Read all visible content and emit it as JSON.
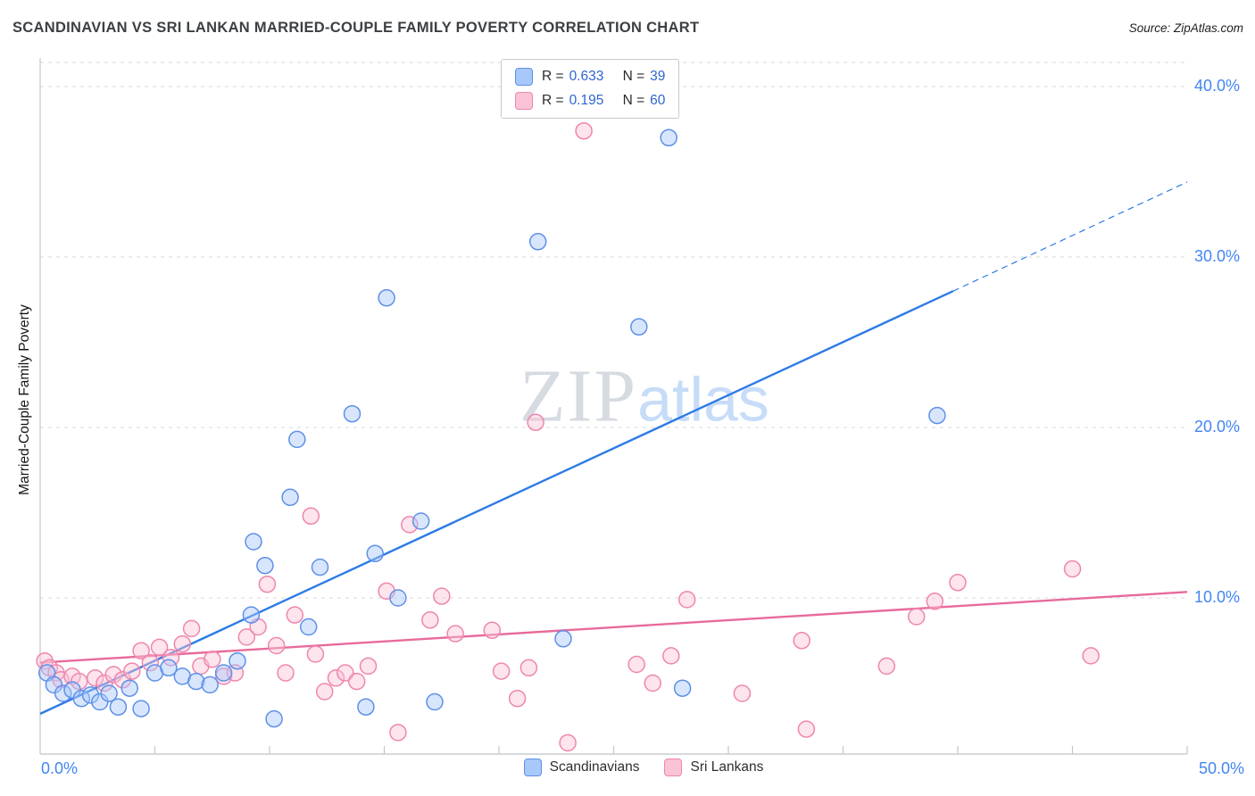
{
  "header": {
    "title": "SCANDINAVIAN VS SRI LANKAN MARRIED-COUPLE FAMILY POVERTY CORRELATION CHART",
    "source": "Source: ZipAtlas.com"
  },
  "watermark": {
    "zip": "ZIP",
    "atlas": "atlas"
  },
  "legend_box": {
    "rows": [
      {
        "series": "Scandinavians",
        "r_label": "R =",
        "r_value": "0.633",
        "n_label": "N =",
        "n_value": "39"
      },
      {
        "series": "Sri Lankans",
        "r_label": "R =",
        "r_value": "0.195",
        "n_label": "N =",
        "n_value": "60"
      }
    ]
  },
  "axes": {
    "y_title": "Married-Couple Family Poverty",
    "y_tick_labels": [
      "40.0%",
      "30.0%",
      "20.0%",
      "10.0%"
    ],
    "x_left_label": "0.0%",
    "x_right_label": "50.0%"
  },
  "bottom_legend": [
    {
      "label": "Scandinavians"
    },
    {
      "label": "Sri Lankans"
    }
  ],
  "colors": {
    "blue_fill": "#A8C8FA",
    "blue_edge": "#5E90E8",
    "blue_line": "#2D7BE5",
    "pink_fill": "#FAC3D7",
    "pink_edge": "#EF86AD",
    "pink_line": "#E76A9B",
    "axis_label_blue": "#4285F4",
    "legend_value_blue": "#2E66D0",
    "gridline": "#d9d9d9",
    "axis_line": "#c9cdd2"
  },
  "chart_data": {
    "type": "scatter",
    "title": "SCANDINAVIAN VS SRI LANKAN MARRIED-COUPLE FAMILY POVERTY CORRELATION CHART",
    "xlabel": "",
    "ylabel": "Married-Couple Family Poverty",
    "xlim": [
      0,
      50
    ],
    "ylim": [
      0,
      41.5
    ],
    "y_gridlines": [
      10,
      20,
      30,
      40
    ],
    "x_ticks_every": 5,
    "grid": "horizontal-dashed",
    "legend_position": "bottom",
    "series": [
      {
        "name": "Scandinavians",
        "R": 0.633,
        "N": 39,
        "points": [
          [
            0.3,
            5.6
          ],
          [
            0.6,
            4.9
          ],
          [
            1.0,
            4.4
          ],
          [
            1.4,
            4.6
          ],
          [
            1.8,
            4.1
          ],
          [
            2.2,
            4.3
          ],
          [
            2.6,
            3.9
          ],
          [
            3.0,
            4.4
          ],
          [
            3.4,
            3.6
          ],
          [
            3.9,
            4.7
          ],
          [
            4.4,
            3.5
          ],
          [
            5.0,
            5.6
          ],
          [
            5.6,
            5.9
          ],
          [
            6.2,
            5.4
          ],
          [
            6.8,
            5.1
          ],
          [
            7.4,
            4.9
          ],
          [
            8.0,
            5.6
          ],
          [
            8.6,
            6.3
          ],
          [
            9.2,
            9.0
          ],
          [
            9.3,
            13.3
          ],
          [
            9.8,
            11.9
          ],
          [
            10.2,
            2.9
          ],
          [
            10.9,
            15.9
          ],
          [
            11.2,
            19.3
          ],
          [
            11.7,
            8.3
          ],
          [
            12.2,
            11.8
          ],
          [
            13.6,
            20.8
          ],
          [
            14.2,
            3.6
          ],
          [
            14.6,
            12.6
          ],
          [
            15.1,
            27.6
          ],
          [
            15.6,
            10.0
          ],
          [
            16.6,
            14.5
          ],
          [
            17.2,
            3.9
          ],
          [
            21.7,
            30.9
          ],
          [
            22.8,
            7.6
          ],
          [
            26.1,
            25.9
          ],
          [
            27.4,
            37.0
          ],
          [
            28.0,
            4.7
          ],
          [
            39.1,
            20.7
          ]
        ]
      },
      {
        "name": "Sri Lankans",
        "R": 0.195,
        "N": 60,
        "points": [
          [
            0.2,
            6.3
          ],
          [
            0.4,
            5.9
          ],
          [
            0.7,
            5.6
          ],
          [
            0.9,
            5.2
          ],
          [
            1.4,
            5.4
          ],
          [
            1.7,
            5.1
          ],
          [
            2.4,
            5.3
          ],
          [
            2.8,
            5.0
          ],
          [
            3.2,
            5.5
          ],
          [
            3.6,
            5.2
          ],
          [
            4.0,
            5.7
          ],
          [
            4.4,
            6.9
          ],
          [
            4.8,
            6.2
          ],
          [
            5.2,
            7.1
          ],
          [
            5.7,
            6.5
          ],
          [
            6.2,
            7.3
          ],
          [
            6.6,
            8.2
          ],
          [
            7.0,
            6.0
          ],
          [
            7.5,
            6.4
          ],
          [
            8.0,
            5.4
          ],
          [
            8.5,
            5.6
          ],
          [
            9.0,
            7.7
          ],
          [
            9.5,
            8.3
          ],
          [
            9.9,
            10.8
          ],
          [
            10.3,
            7.2
          ],
          [
            10.7,
            5.6
          ],
          [
            11.1,
            9.0
          ],
          [
            11.8,
            14.8
          ],
          [
            12.0,
            6.7
          ],
          [
            12.4,
            4.5
          ],
          [
            12.9,
            5.3
          ],
          [
            13.3,
            5.6
          ],
          [
            13.8,
            5.1
          ],
          [
            14.3,
            6.0
          ],
          [
            15.1,
            10.4
          ],
          [
            15.6,
            2.1
          ],
          [
            16.1,
            14.3
          ],
          [
            17.0,
            8.7
          ],
          [
            17.5,
            10.1
          ],
          [
            18.1,
            7.9
          ],
          [
            19.7,
            8.1
          ],
          [
            20.1,
            5.7
          ],
          [
            20.8,
            4.1
          ],
          [
            21.3,
            5.9
          ],
          [
            21.6,
            20.3
          ],
          [
            23.0,
            1.5
          ],
          [
            23.7,
            37.4
          ],
          [
            26.0,
            6.1
          ],
          [
            26.7,
            5.0
          ],
          [
            27.5,
            6.6
          ],
          [
            28.2,
            9.9
          ],
          [
            30.6,
            4.4
          ],
          [
            33.2,
            7.5
          ],
          [
            33.4,
            2.3
          ],
          [
            36.9,
            6.0
          ],
          [
            38.2,
            8.9
          ],
          [
            39.0,
            9.8
          ],
          [
            40.0,
            10.9
          ],
          [
            45.0,
            11.7
          ],
          [
            45.8,
            6.6
          ]
        ]
      }
    ],
    "trend_lines": [
      {
        "series": "Scandinavians",
        "solid": [
          [
            0,
            3.2
          ],
          [
            39.8,
            28.0
          ]
        ],
        "dashed": [
          [
            39.8,
            28.0
          ],
          [
            50,
            34.4
          ]
        ]
      },
      {
        "series": "Sri Lankans",
        "solid": [
          [
            0,
            6.2
          ],
          [
            50,
            10.35
          ]
        ]
      }
    ]
  }
}
